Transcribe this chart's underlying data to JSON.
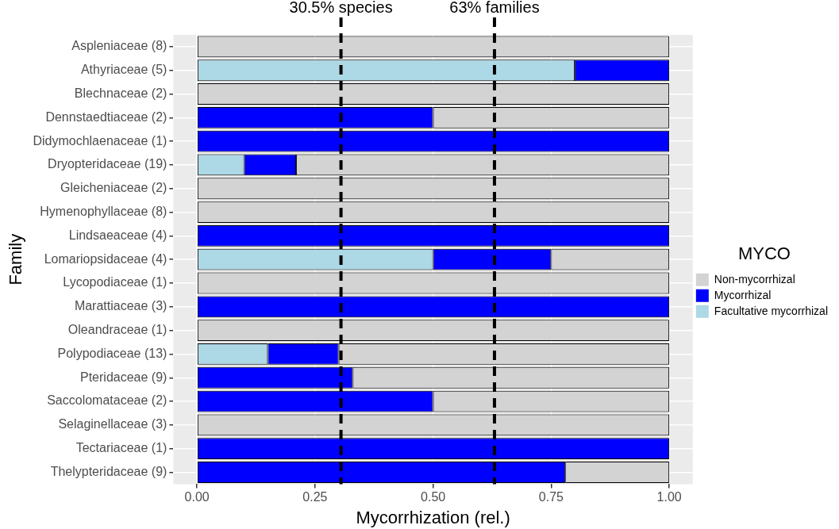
{
  "chart_data": {
    "type": "bar",
    "orientation": "horizontal",
    "stacked": true,
    "xlabel": "Mycorrhization (rel.)",
    "ylabel": "Family",
    "legend_title": "MYCO",
    "categories": [
      "Aspleniaceae (8)",
      "Athyriaceae (5)",
      "Blechnaceae (2)",
      "Dennstaedtiaceae (2)",
      "Didymochlaenaceae (1)",
      "Dryopteridaceae (19)",
      "Gleicheniaceae (2)",
      "Hymenophyllaceae (8)",
      "Lindsaeaceae (4)",
      "Lomariopsidaceae (4)",
      "Lycopodiaceae (1)",
      "Marattiaceae (3)",
      "Oleandraceae (1)",
      "Polypodiaceae (13)",
      "Pteridaceae (9)",
      "Saccolomataceae (2)",
      "Selaginellaceae (3)",
      "Tectariaceae (1)",
      "Thelypteridaceae (9)"
    ],
    "series": [
      {
        "name": "Facultative mycorrhizal",
        "color": "#add8e6",
        "values": [
          0,
          0.8,
          0,
          0,
          0,
          0.1,
          0,
          0,
          0,
          0.5,
          0,
          0,
          0,
          0.15,
          0,
          0,
          0,
          0,
          0
        ]
      },
      {
        "name": "Mycorrhizal",
        "color": "#0000ff",
        "values": [
          0,
          0.2,
          0,
          0.5,
          1,
          0.11,
          0,
          0,
          1,
          0.25,
          0,
          1,
          0,
          0.15,
          0.33,
          0.5,
          0,
          1,
          0.78
        ]
      },
      {
        "name": "Non-mycorrhizal",
        "color": "#d3d3d3",
        "values": [
          1,
          0,
          1,
          0.5,
          0,
          0.79,
          1,
          1,
          0,
          0.25,
          1,
          0,
          1,
          0.7,
          0.67,
          0.5,
          1,
          0,
          0.22
        ]
      }
    ],
    "xlim": [
      -0.05,
      1.05
    ],
    "xticks": [
      {
        "value": 0,
        "label": "0.00"
      },
      {
        "value": 0.25,
        "label": "0.25"
      },
      {
        "value": 0.5,
        "label": "0.50"
      },
      {
        "value": 0.75,
        "label": "0.75"
      },
      {
        "value": 1,
        "label": "1.00"
      }
    ],
    "ref_lines": [
      {
        "axis": "x",
        "value": 0.305,
        "label": "30.5% species",
        "color": "#000000",
        "line_style": "dashed"
      },
      {
        "axis": "x",
        "value": 0.63,
        "label": "63% families",
        "color": "#000000",
        "line_style": "dashed"
      }
    ],
    "grid": true,
    "legend": "right"
  }
}
